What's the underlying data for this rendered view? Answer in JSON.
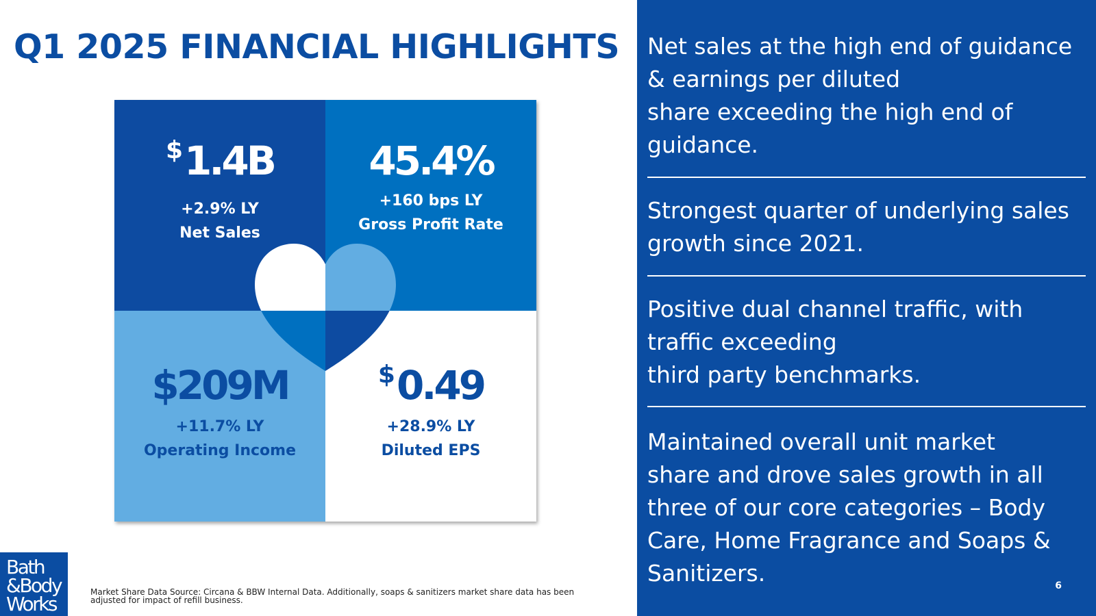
{
  "title": "Q1 2025 FINANCIAL HIGHLIGHTS",
  "colors": {
    "brand_navy": "#0B4DA2",
    "quad_dark": "#0D4BA1",
    "quad_mid": "#0070C0",
    "quad_light": "#62ADE2",
    "heart_light": "#62ADE2"
  },
  "kpis": {
    "net_sales": {
      "currency": "$",
      "value": "1.4B",
      "change": "+2.9% LY",
      "label": "Net Sales"
    },
    "gross_profit": {
      "value": "45.4%",
      "change": "+160 bps LY",
      "label": "Gross Profit Rate"
    },
    "operating_income": {
      "value": "$209M",
      "change": "+11.7% LY",
      "label": "Operating Income"
    },
    "diluted_eps": {
      "currency": "$",
      "value": "0.49",
      "change": "+28.9% LY",
      "label": "Diluted EPS"
    }
  },
  "highlights": [
    {
      "lines": [
        "Net sales at the high end of guidance",
        "& earnings per diluted",
        "share exceeding the high end of",
        "guidance."
      ]
    },
    {
      "lines": [
        "Strongest quarter of underlying sales",
        "growth since 2021."
      ]
    },
    {
      "lines": [
        "Positive dual channel traffic, with",
        "traffic exceeding",
        "third party benchmarks."
      ]
    },
    {
      "lines": [
        "Maintained overall unit market",
        "share and drove sales growth in all",
        "three of our core categories – Body",
        "Care, Home Fragrance and Soaps &",
        "Sanitizers."
      ]
    }
  ],
  "logo": {
    "lines": [
      "Bath",
      "&Body",
      "Works"
    ]
  },
  "footnote": {
    "lines": [
      "Market Share Data Source: Circana & BBW Internal Data. Additionally, soaps & sanitizers market share data has been",
      "adjusted for impact of refill business."
    ]
  },
  "page_number": "6"
}
